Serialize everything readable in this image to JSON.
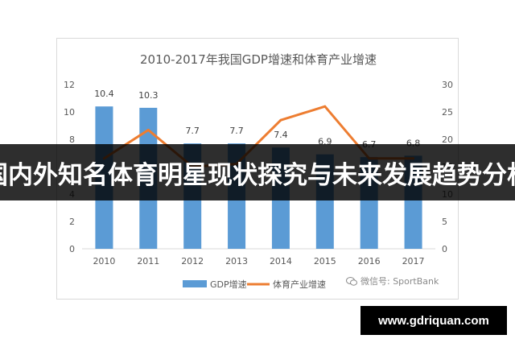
{
  "banner": {
    "text": "国内外知名体育明星现状探究与未来发展趋势分析"
  },
  "watermark": {
    "text": "微信号: SportBank",
    "icon": "wechat-icon"
  },
  "site": {
    "url": "www.gdriquan.com"
  },
  "chart_data": {
    "type": "bar",
    "title": "2010-2017年我国GDP增速和体育产业增速",
    "categories": [
      "2010",
      "2011",
      "2012",
      "2013",
      "2014",
      "2015",
      "2016",
      "2017"
    ],
    "series": [
      {
        "name": "GDP增速",
        "type": "bar",
        "axis": "left",
        "color": "#5b9bd5",
        "values": [
          10.4,
          10.3,
          7.7,
          7.7,
          7.4,
          6.9,
          6.7,
          6.8
        ],
        "data_labels": [
          "10.4",
          "10.3",
          "7.7",
          "7.7",
          "7.4",
          "6.9",
          "6.7",
          "6.8"
        ]
      },
      {
        "name": "体育产业增速",
        "type": "line",
        "axis": "right",
        "color": "#ed7d31",
        "values": [
          16.5,
          21.7,
          15.0,
          15.5,
          23.5,
          26.0,
          16.5,
          16.5
        ]
      }
    ],
    "y_left": {
      "min": 0,
      "max": 12,
      "ticks": [
        0,
        2,
        4,
        6,
        8,
        10,
        12
      ]
    },
    "y_right": {
      "min": 0,
      "max": 30,
      "ticks": [
        0,
        5,
        10,
        15,
        20,
        25,
        30
      ]
    },
    "grid": false,
    "legend": "bottom"
  }
}
